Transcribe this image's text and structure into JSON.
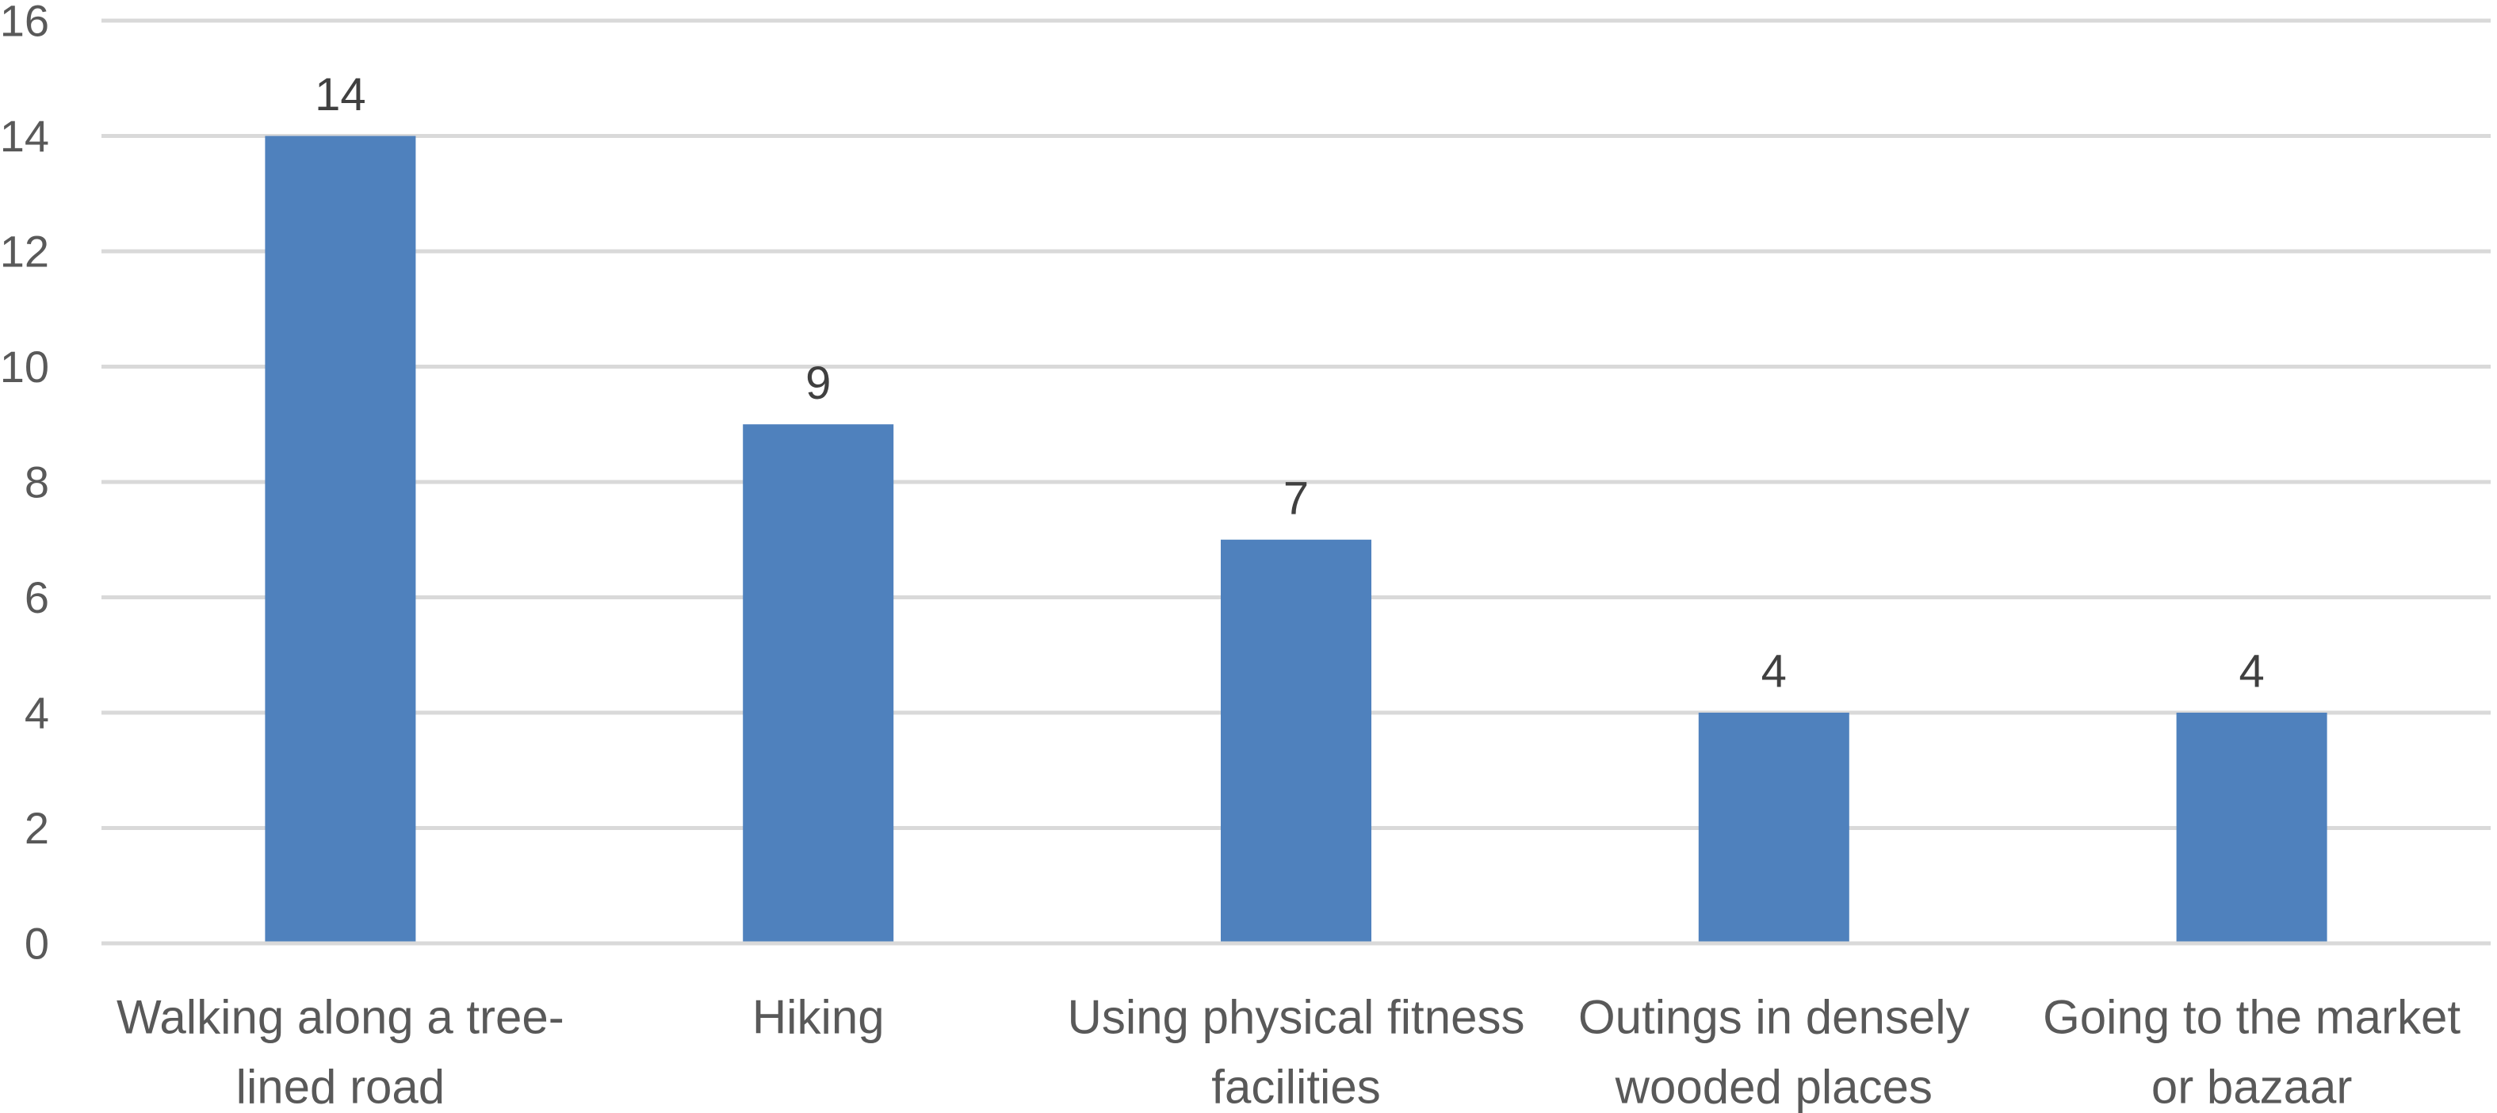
{
  "chart_data": {
    "type": "bar",
    "title": "",
    "xlabel": "",
    "ylabel": "",
    "categories": [
      [
        "Walking along a tree-",
        "lined road"
      ],
      [
        "Hiking"
      ],
      [
        "Using physical fitness",
        "facilities"
      ],
      [
        "Outings in densely",
        "wooded places"
      ],
      [
        "Going to the market",
        "or bazaar"
      ]
    ],
    "values": [
      14,
      9,
      7,
      4,
      4
    ],
    "data_labels": [
      "14",
      "9",
      "7",
      "4",
      "4"
    ],
    "ylim": [
      0,
      16
    ],
    "yticks": [
      0,
      2,
      4,
      6,
      8,
      10,
      12,
      14,
      16
    ],
    "ytick_labels": [
      "0",
      "2",
      "4",
      "6",
      "8",
      "10",
      "12",
      "14",
      "16"
    ],
    "grid": true,
    "legend": "none",
    "colors": {
      "bar": "#4f81bd",
      "grid": "#d9d9d9",
      "tick_text": "#595959",
      "label_text": "#404040"
    }
  }
}
